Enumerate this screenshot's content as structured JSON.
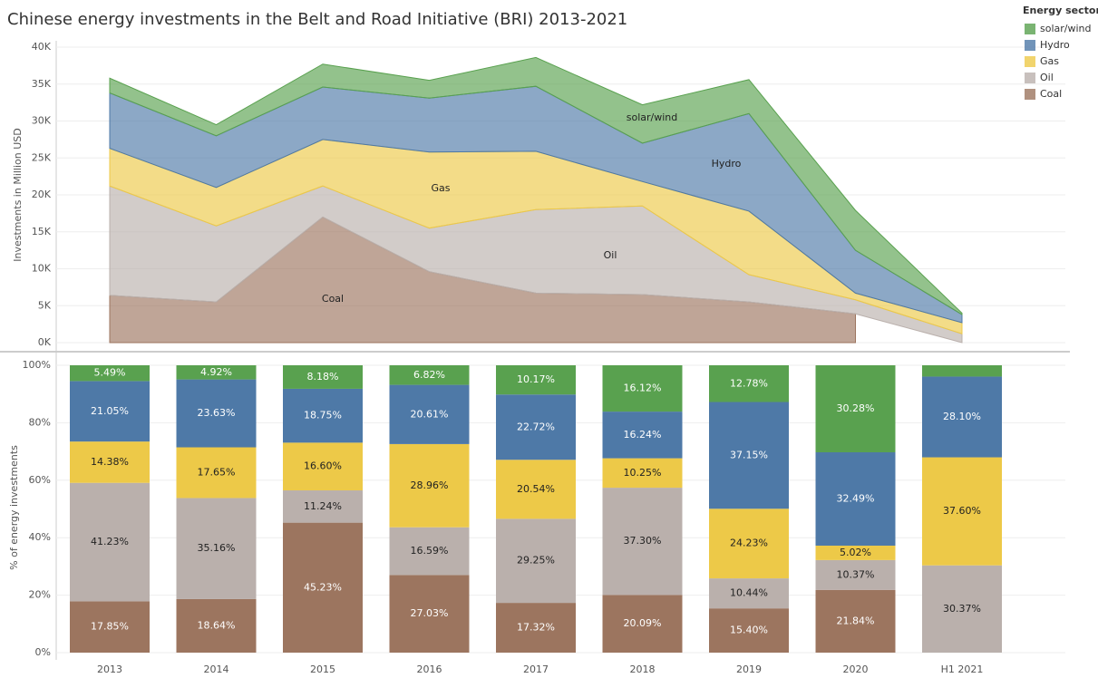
{
  "chart_data": [
    {
      "type": "area",
      "title": "Chinese energy investments in the Belt and Road Initiative (BRI) 2013-2021",
      "y_label": "Investments in Million USD",
      "legend_title": "Energy sector",
      "ylim": [
        0,
        40000
      ],
      "yticks": [
        {
          "value": 0,
          "label": "0K"
        },
        {
          "value": 5000,
          "label": "5K"
        },
        {
          "value": 10000,
          "label": "10K"
        },
        {
          "value": 15000,
          "label": "15K"
        },
        {
          "value": 20000,
          "label": "20K"
        },
        {
          "value": 25000,
          "label": "25K"
        },
        {
          "value": 30000,
          "label": "30K"
        },
        {
          "value": 35000,
          "label": "35K"
        },
        {
          "value": 40000,
          "label": "40K"
        }
      ],
      "grid": true,
      "legend": "top-right",
      "series": [
        {
          "name": "Coal",
          "color": "#9c755f",
          "values": [
            6400,
            5500,
            17000,
            9600,
            6700,
            6500,
            5500,
            3900,
            null
          ]
        },
        {
          "name": "Oil",
          "color": "#bab0ac",
          "values": [
            14800,
            10300,
            4200,
            5900,
            11300,
            12000,
            3700,
            1900,
            1200
          ]
        },
        {
          "name": "Gas",
          "color": "#edc948",
          "values": [
            5100,
            5200,
            6300,
            10300,
            7900,
            3300,
            8600,
            900,
            1500
          ]
        },
        {
          "name": "Hydro",
          "color": "#4e79a7",
          "values": [
            7500,
            7000,
            7100,
            7300,
            8800,
            5200,
            13200,
            5800,
            1100
          ]
        },
        {
          "name": "solar/wind",
          "color": "#59a14f",
          "values": [
            2000,
            1500,
            3100,
            2400,
            3900,
            5200,
            4600,
            5400,
            200
          ]
        }
      ]
    },
    {
      "type": "stacked_bar",
      "y_label": "% of energy investments",
      "categories": [
        "2013",
        "2014",
        "2015",
        "2016",
        "2017",
        "2018",
        "2019",
        "2020",
        "H1 2021"
      ],
      "ylim": [
        0,
        100
      ],
      "yticks": [
        {
          "value": 0,
          "label": "0%"
        },
        {
          "value": 20,
          "label": "20%"
        },
        {
          "value": 40,
          "label": "40%"
        },
        {
          "value": 60,
          "label": "60%"
        },
        {
          "value": 80,
          "label": "80%"
        },
        {
          "value": 100,
          "label": "100%"
        }
      ],
      "grid": true,
      "series": [
        {
          "name": "Coal",
          "color": "#9c755f",
          "label_color": "#ffffff",
          "values": [
            17.85,
            18.64,
            45.23,
            27.03,
            17.32,
            20.09,
            15.4,
            21.84,
            null
          ],
          "value_labels": [
            "17.85%",
            "18.64%",
            "45.23%",
            "27.03%",
            "17.32%",
            "20.09%",
            "15.40%",
            "21.84%",
            null
          ]
        },
        {
          "name": "Oil",
          "color": "#bab0ac",
          "label_color": "#222222",
          "values": [
            41.23,
            35.16,
            11.24,
            16.59,
            29.25,
            37.3,
            10.44,
            10.37,
            30.37
          ],
          "value_labels": [
            "41.23%",
            "35.16%",
            "11.24%",
            "16.59%",
            "29.25%",
            "37.30%",
            "10.44%",
            "10.37%",
            "30.37%"
          ]
        },
        {
          "name": "Gas",
          "color": "#edc948",
          "label_color": "#222222",
          "values": [
            14.38,
            17.65,
            16.6,
            28.96,
            20.54,
            10.25,
            24.23,
            5.02,
            37.6
          ],
          "value_labels": [
            "14.38%",
            "17.65%",
            "16.60%",
            "28.96%",
            "20.54%",
            "10.25%",
            "24.23%",
            "5.02%",
            "37.60%"
          ]
        },
        {
          "name": "Hydro",
          "color": "#4e79a7",
          "label_color": "#ffffff",
          "values": [
            21.05,
            23.63,
            18.75,
            20.61,
            22.72,
            16.24,
            37.15,
            32.49,
            28.1
          ],
          "value_labels": [
            "21.05%",
            "23.63%",
            "18.75%",
            "20.61%",
            "22.72%",
            "16.24%",
            "37.15%",
            "32.49%",
            "28.10%"
          ]
        },
        {
          "name": "solar/wind",
          "color": "#59a14f",
          "label_color": "#ffffff",
          "values": [
            5.49,
            4.92,
            8.18,
            6.82,
            10.17,
            16.12,
            12.78,
            30.28,
            3.93
          ],
          "value_labels": [
            "5.49%",
            "4.92%",
            "8.18%",
            "6.82%",
            "10.17%",
            "16.12%",
            "12.78%",
            "30.28%",
            null
          ]
        }
      ]
    }
  ]
}
